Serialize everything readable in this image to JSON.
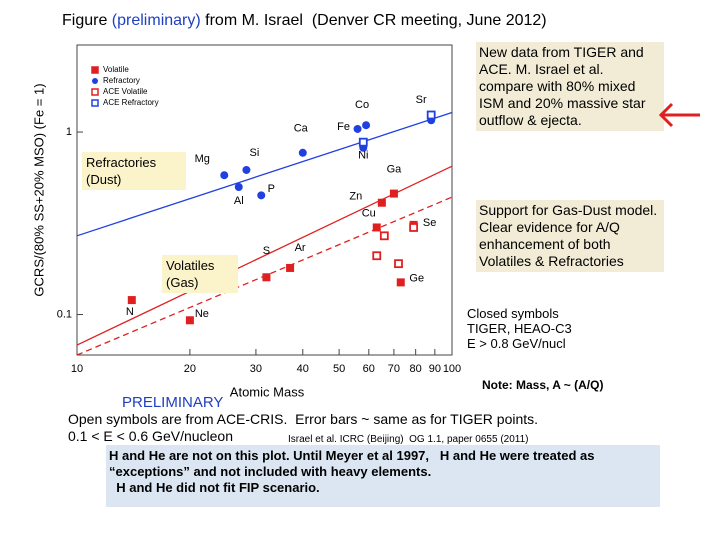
{
  "chart_data": {
    "type": "scatter",
    "ylabel": "GCRS/(80% SS+20% MSO)  (Fe = 1)",
    "xlabel": "Atomic Mass",
    "xscale": "log",
    "yscale": "log",
    "xlim": [
      10,
      100
    ],
    "ylim": [
      0.06,
      3
    ],
    "xticks": [
      10,
      20,
      30,
      40,
      50,
      60,
      70,
      80,
      90,
      100
    ],
    "yticks": [
      0.1,
      1
    ],
    "series": [
      {
        "name": "Volatile",
        "color": "#e02020",
        "marker": "square",
        "filled": true,
        "x": [
          14,
          20,
          32,
          37,
          63,
          65,
          70,
          73,
          79
        ],
        "values": [
          0.12,
          0.093,
          0.16,
          0.18,
          0.3,
          0.41,
          0.46,
          0.15,
          0.31
        ],
        "labels": [
          "N",
          "Ne",
          "S",
          "Ar",
          "Cu",
          "Zn",
          "Ga",
          "Ge",
          "Se"
        ]
      },
      {
        "name": "Refractory",
        "color": "#2040e0",
        "marker": "circle",
        "filled": true,
        "x": [
          24.7,
          27,
          28.3,
          31,
          40,
          56,
          58,
          59,
          88
        ],
        "values": [
          0.58,
          0.5,
          0.62,
          0.45,
          0.77,
          1.04,
          0.82,
          1.09,
          1.16
        ],
        "labels": [
          "Mg",
          "Al",
          "Si",
          "P",
          "Ca",
          "Fe",
          "Ni",
          "Co",
          "Sr"
        ]
      },
      {
        "name": "ACE Volatile",
        "color": "#e02020",
        "marker": "square",
        "filled": false,
        "x": [
          63,
          66,
          72,
          79
        ],
        "values": [
          0.21,
          0.27,
          0.19,
          0.3
        ]
      },
      {
        "name": "ACE Refractory",
        "color": "#2040e0",
        "marker": "square",
        "filled": false,
        "x": [
          58,
          88
        ],
        "values": [
          0.88,
          1.24
        ]
      }
    ],
    "fit_lines": [
      {
        "color": "#2040e0",
        "dash": false,
        "x": [
          10,
          100
        ],
        "values": [
          0.27,
          1.28
        ]
      },
      {
        "color": "#e02020",
        "dash": false,
        "x": [
          10,
          100
        ],
        "values": [
          0.068,
          0.65
        ]
      },
      {
        "color": "#e02020",
        "dash": true,
        "x": [
          10,
          100
        ],
        "values": [
          0.06,
          0.44
        ]
      }
    ],
    "annotations": [
      "Refractories (Dust)",
      "Volatiles (Gas)"
    ]
  },
  "slide": {
    "title": [
      "Figure ",
      "(preliminary)",
      " from M. Israel  (Denver CR meeting, June 2012)"
    ],
    "note1": "New data from TIGER and ACE. M. Israel et al. compare with 80% mixed ISM and 20% massive star outflow & ejecta.",
    "note2": "Support for Gas-Dust model. Clear evidence for A/Q enhancement of both Volatiles & Refractories",
    "closed": [
      "Closed symbols",
      "TIGER, HEAO-C3",
      "E > 0.8 GeV/nucl"
    ],
    "note3": "Note: Mass, A ~ (A/Q)",
    "preliminary": "PRELIMINARY",
    "open": "Open symbols are from ACE-CRIS.  Error bars ~ same as for TIGER points.",
    "energy": "0.1 < E < 0.6 GeV/nucleon",
    "ref": "Israel et al. ICRC (Beijing)  OG 1.1, paper 0655 (2011)",
    "bottom": [
      "H and He are not on this plot. Until Meyer et al 1997,   H and He were treated as",
      "“exceptions” and not included with heavy elements.",
      "  H and He did not fit FIP scenario."
    ]
  }
}
